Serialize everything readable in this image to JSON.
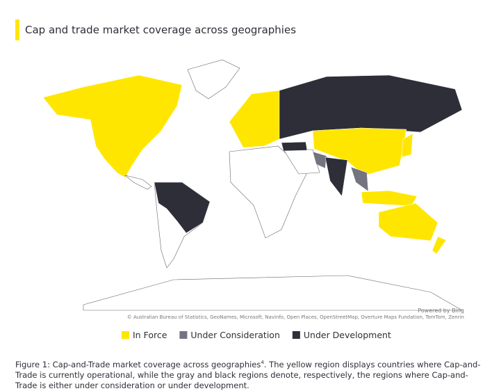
{
  "title": "Cap and trade market coverage across geographies",
  "legend": [
    {
      "label": "In Force",
      "color": "#ffe600"
    },
    {
      "label": "Under Consideration",
      "color": "#747480"
    },
    {
      "label": "Under Development",
      "color": "#2e2e38"
    }
  ],
  "attribution": {
    "powered": "Powered by Bing",
    "credits": "© Australian Bureau of Statistics, GeoNames, Microsoft, Navinfo, Open Places, OpenStreetMap, Overture Maps Fundation, TomTom, Zenrin"
  },
  "caption": {
    "before": "Figure 1: Cap-and-Trade market coverage across geographies",
    "sup": "4",
    "after": ". The yellow region displays countries where Cap-and-Trade is currently operational, while the gray and black regions denote, respectively, the regions where Cap-and-Trade is either under consideration or under development."
  }
}
